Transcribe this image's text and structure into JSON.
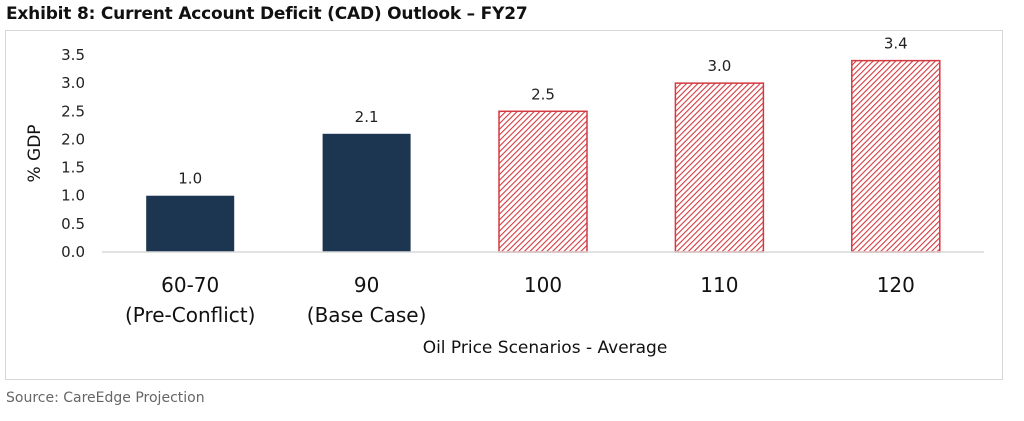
{
  "title": "Exhibit 8: Current Account Deficit (CAD) Outlook – FY27",
  "source": "Source: CareEdge Projection",
  "colors": {
    "actual": "#1c3550",
    "scenario_stroke": "#d33a40",
    "scenario_hatch": "#d33a40",
    "axis": "#d9d9d9",
    "frame": "#d6d6d6"
  },
  "chart_data": {
    "type": "bar",
    "title": "Exhibit 8: Current Account Deficit (CAD) Outlook – FY27",
    "xlabel": "Oil Price Scenarios - Average",
    "ylabel": "% GDP",
    "ylim": [
      0,
      3.5
    ],
    "yticks": [
      "0.0",
      "0.5",
      "1.0",
      "1.5",
      "2.0",
      "2.5",
      "3.0",
      "3.5"
    ],
    "grid": false,
    "legend": "none",
    "categories": [
      {
        "line1": "60-70",
        "line2": "(Pre-Conflict)"
      },
      {
        "line1": "90",
        "line2": "(Base Case)"
      },
      {
        "line1": "100",
        "line2": ""
      },
      {
        "line1": "110",
        "line2": ""
      },
      {
        "line1": "120",
        "line2": ""
      }
    ],
    "values": [
      1.0,
      2.1,
      2.5,
      3.0,
      3.4
    ],
    "value_labels": [
      "1.0",
      "2.1",
      "2.5",
      "3.0",
      "3.4"
    ],
    "styles": [
      "solid",
      "solid",
      "hatched",
      "hatched",
      "hatched"
    ]
  }
}
